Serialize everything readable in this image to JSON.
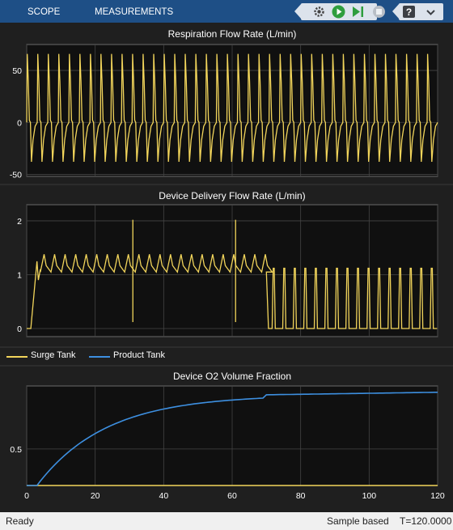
{
  "toolbar": {
    "tabs": [
      {
        "label": "SCOPE"
      },
      {
        "label": "MEASUREMENTS"
      }
    ],
    "buttons": [
      {
        "icon": "settings-gear-icon"
      },
      {
        "icon": "run-icon"
      },
      {
        "icon": "step-forward-icon"
      },
      {
        "icon": "stop-icon"
      },
      {
        "icon": "help-icon"
      },
      {
        "icon": "expand-icon"
      }
    ],
    "colors": {
      "bar": "#1e4f86",
      "run": "#2e9e3e",
      "button_bg": "#dce3ec"
    }
  },
  "plots": [
    {
      "title": "Respiration Flow Rate (L/min)",
      "yticks": [
        "50",
        "0",
        "-50"
      ],
      "ylim": [
        -52,
        75
      ],
      "xlim": [
        0,
        120
      ],
      "series": [
        {
          "color": "#f2d55b",
          "min": -38,
          "max": 66,
          "baseline": 0,
          "cycles": 39
        }
      ]
    },
    {
      "title": "Device Delivery Flow Rate (L/min)",
      "yticks": [
        "2",
        "1",
        "0"
      ],
      "ylim": [
        -0.15,
        2.3
      ],
      "xlim": [
        0,
        120
      ],
      "series": [
        {
          "color": "#f2d55b",
          "phase1_end": 70,
          "phase1_level": 1.05,
          "phase1_peak": 1.38,
          "phase2_peak": 1.12,
          "phase2_base": 0,
          "spikes": [
            [
              31,
              2.02,
              0.12
            ],
            [
              61,
              2.02,
              0.12
            ]
          ]
        }
      ]
    },
    {
      "title": "Device O2 Volume Fraction",
      "yticks": [
        "0.5"
      ],
      "ylim": [
        0.21,
        1.0
      ],
      "xlim": [
        0,
        120
      ],
      "xticks": [
        "0",
        "20",
        "40",
        "60",
        "80",
        "100",
        "120"
      ],
      "series": [
        {
          "name": "Surge Tank",
          "color": "#f2d55b",
          "value": 0.21
        },
        {
          "name": "Product Tank",
          "color": "#3d8fe0",
          "start": 0.21,
          "plateau": 0.95
        }
      ]
    }
  ],
  "legend": [
    {
      "label": "Surge Tank",
      "color": "#f2d55b"
    },
    {
      "label": "Product Tank",
      "color": "#3d8fe0"
    }
  ],
  "status": {
    "left": "Ready",
    "mode": "Sample based",
    "time": "T=120.0000"
  }
}
